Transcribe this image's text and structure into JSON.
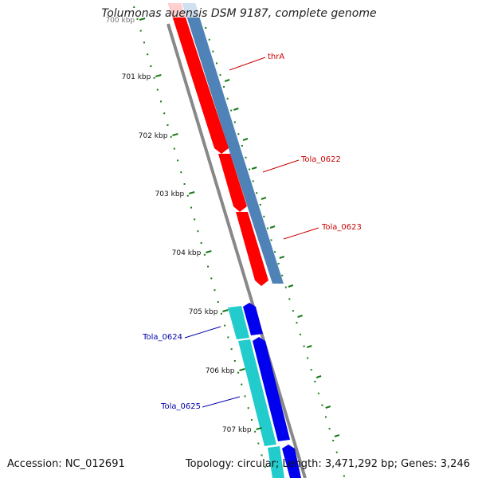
{
  "header": {
    "title": "Tolumonas auensis DSM 9187, complete genome"
  },
  "footer": {
    "accession": "Accession: NC_012691",
    "summary": "Topology: circular; Length: 3,471,292 bp; Genes: 3,246"
  },
  "ticks": [
    "700 kbp",
    "701 kbp",
    "702 kbp",
    "703 kbp",
    "704 kbp",
    "705 kbp",
    "706 kbp",
    "707 kbp"
  ],
  "genes": [
    {
      "label": "thrA",
      "strand": "forward",
      "color": "#cc0000"
    },
    {
      "label": "Tola_0622",
      "strand": "forward",
      "color": "#cc0000"
    },
    {
      "label": "Tola_0623",
      "strand": "forward",
      "color": "#cc0000"
    },
    {
      "label": "Tola_0624",
      "strand": "reverse",
      "color": "#0000aa"
    },
    {
      "label": "Tola_0625",
      "strand": "reverse",
      "color": "#0000aa"
    }
  ],
  "colors": {
    "forward_cds": "#ff0000",
    "forward_track": "#4f83b8",
    "reverse_cds": "#0000ee",
    "reverse_track": "#22cccc",
    "backbone": "#888888",
    "tick": "#1a7a1a"
  }
}
